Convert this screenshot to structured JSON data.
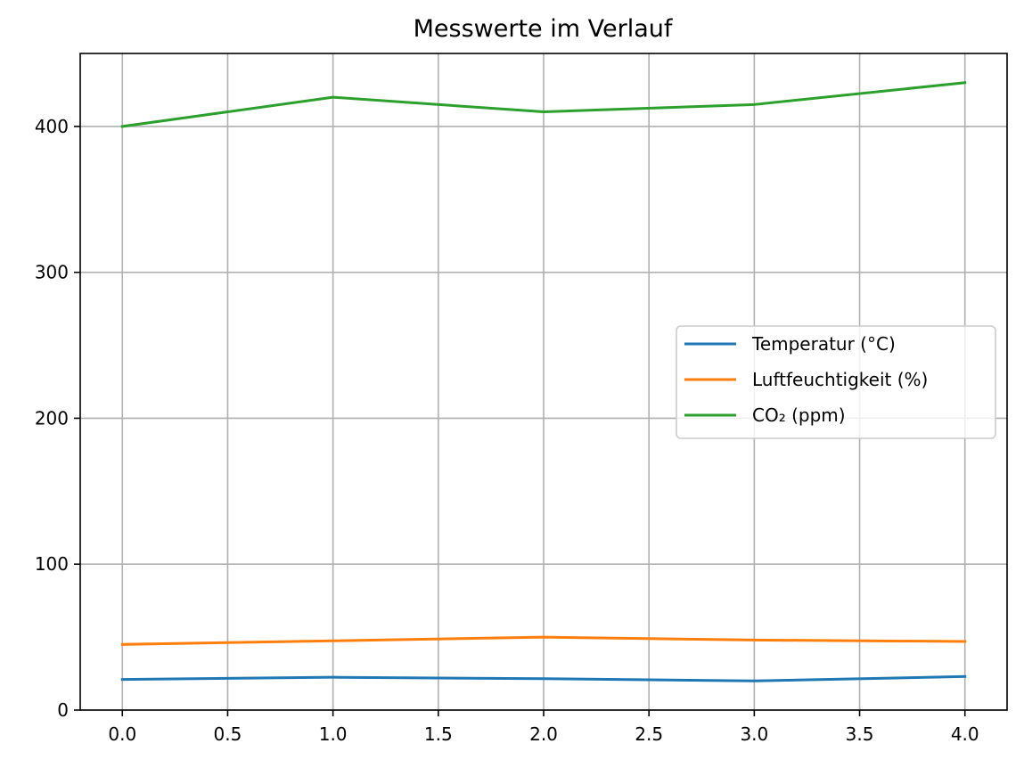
{
  "chart_data": {
    "type": "line",
    "title": "Messwerte im Verlauf",
    "xlabel": "",
    "ylabel": "",
    "x": [
      0,
      1,
      2,
      3,
      4
    ],
    "xlim": [
      -0.2,
      4.2
    ],
    "ylim": [
      0,
      450
    ],
    "x_ticks": [
      0.0,
      0.5,
      1.0,
      1.5,
      2.0,
      2.5,
      3.0,
      3.5,
      4.0
    ],
    "x_tick_labels": [
      "0.0",
      "0.5",
      "1.0",
      "1.5",
      "2.0",
      "2.5",
      "3.0",
      "3.5",
      "4.0"
    ],
    "y_ticks": [
      0,
      100,
      200,
      300,
      400
    ],
    "y_tick_labels": [
      "0",
      "100",
      "200",
      "300",
      "400"
    ],
    "grid": true,
    "legend_position": "center-right",
    "series": [
      {
        "name": "Temperatur (°C)",
        "color": "#1f77b4",
        "values": [
          21,
          22.5,
          21.5,
          20,
          23
        ]
      },
      {
        "name": "Luftfeuchtigkeit (%)",
        "color": "#ff7f0e",
        "values": [
          45,
          47.5,
          50,
          48,
          47
        ]
      },
      {
        "name": "CO₂ (ppm)",
        "color": "#2ca02c",
        "values": [
          400,
          420,
          410,
          415,
          430
        ]
      }
    ]
  }
}
